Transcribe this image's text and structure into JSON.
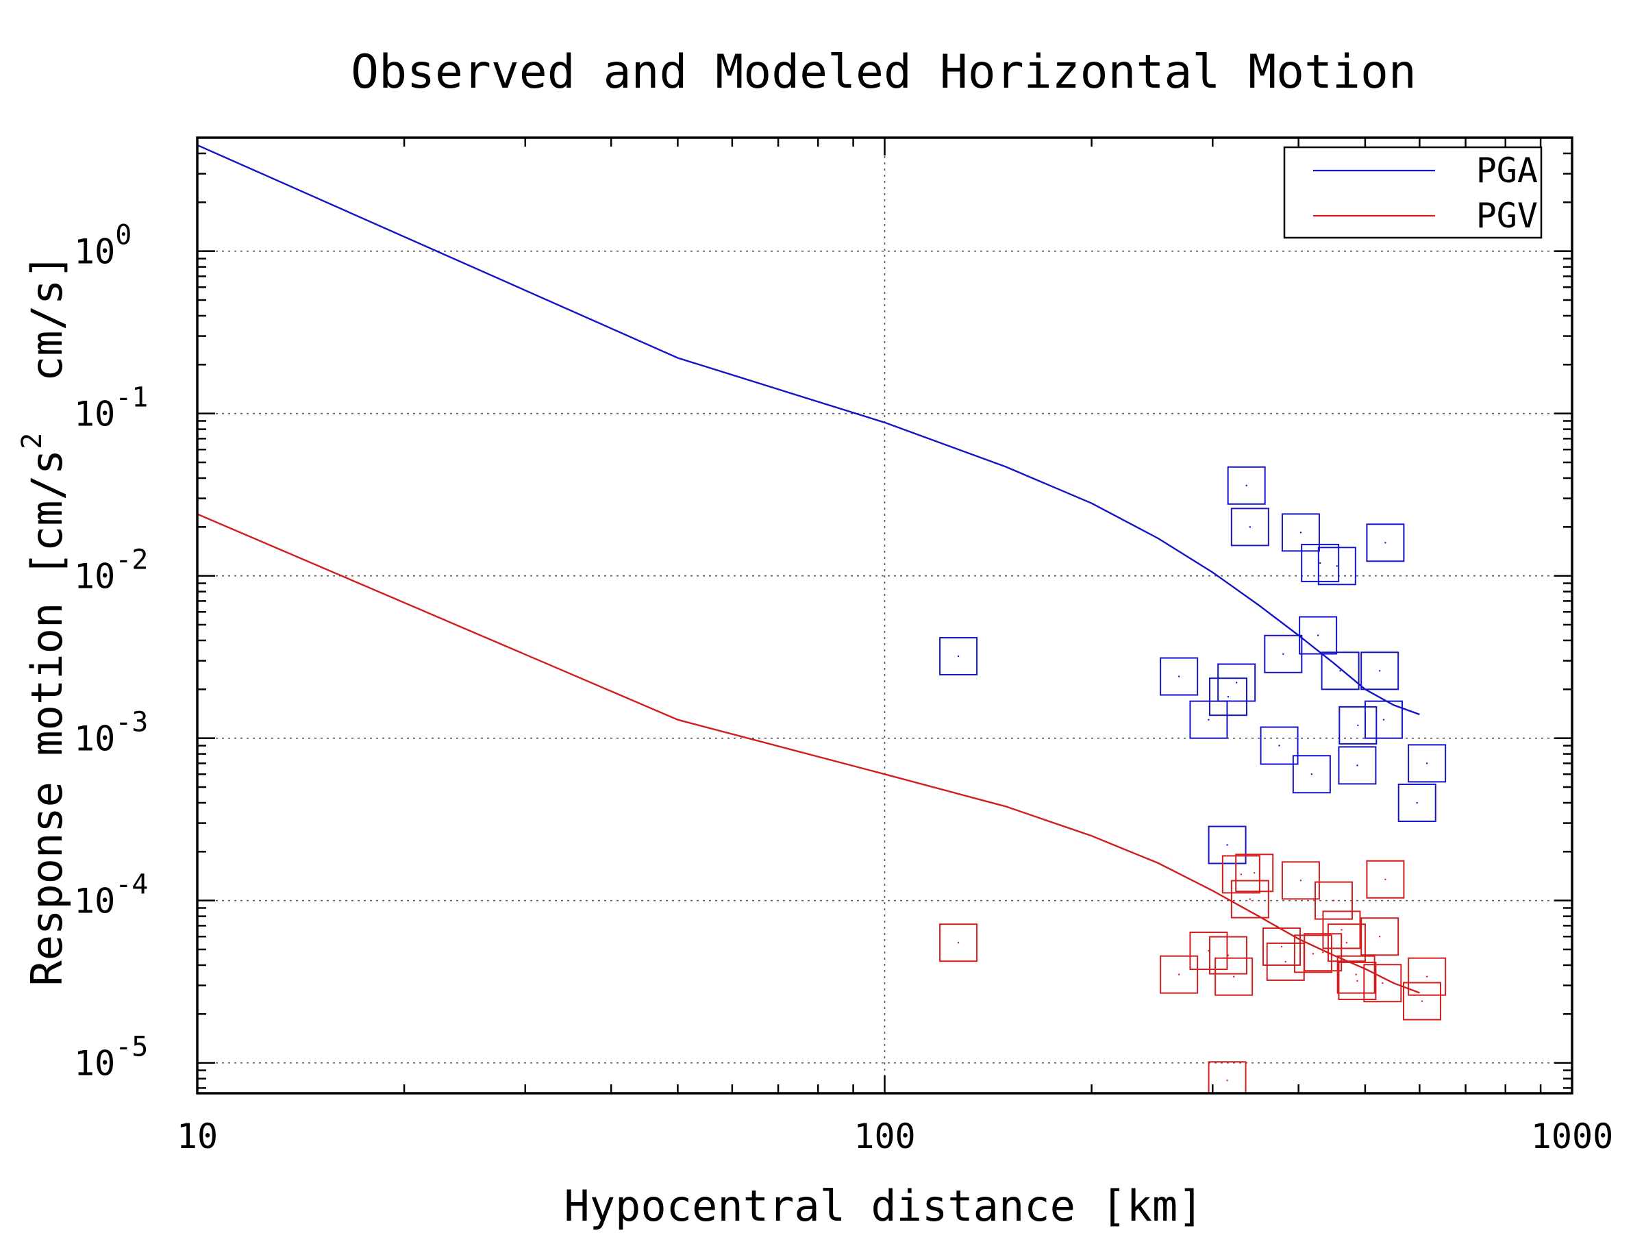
{
  "chart_data": {
    "type": "scatter",
    "title": "Observed and Modeled Horizontal Motion",
    "xlabel": "Hypocentral distance [km]",
    "ylabel_parts": {
      "main": "Response motion [cm/s",
      "sup": "2",
      "tail": "  cm/s]"
    },
    "x_scale": "log",
    "y_scale": "log",
    "xlim": [
      10,
      1000
    ],
    "ylim": [
      6.5e-06,
      5
    ],
    "x_ticks": [
      {
        "value": 10,
        "label": "10"
      },
      {
        "value": 100,
        "label": "100"
      },
      {
        "value": 1000,
        "label": "1000"
      }
    ],
    "y_ticks": [
      {
        "value": 1,
        "base": "10",
        "exp": "0"
      },
      {
        "value": 0.1,
        "base": "10",
        "exp": "-1"
      },
      {
        "value": 0.01,
        "base": "10",
        "exp": "-2"
      },
      {
        "value": 0.001,
        "base": "10",
        "exp": "-3"
      },
      {
        "value": 0.0001,
        "base": "10",
        "exp": "-4"
      },
      {
        "value": 1e-05,
        "base": "10",
        "exp": "-5"
      }
    ],
    "grid": true,
    "legend_position": "top-right",
    "series": [
      {
        "name": "PGA",
        "color": "#1414c8",
        "curve": {
          "x": [
            10,
            50,
            100,
            150,
            200,
            250,
            300,
            350,
            400,
            450,
            500,
            550,
            600
          ],
          "y": [
            4.5,
            0.22,
            0.088,
            0.047,
            0.028,
            0.017,
            0.0105,
            0.0066,
            0.0043,
            0.0029,
            0.002,
            0.0016,
            0.0014
          ]
        },
        "points": {
          "x": [
            336,
            340,
            403,
            430,
            455,
            535,
            128,
            268,
            296,
            316,
            325,
            380,
            427,
            460,
            525,
            375,
            418,
            488,
            487,
            532,
            615,
            595,
            315
          ],
          "y": [
            0.036,
            0.02,
            0.0185,
            0.012,
            0.0115,
            0.016,
            0.0032,
            0.0024,
            0.0013,
            0.0018,
            0.0022,
            0.0033,
            0.0043,
            0.0026,
            0.0026,
            0.0009,
            0.0006,
            0.0012,
            0.00068,
            0.0013,
            0.0007,
            0.0004,
            0.00022
          ]
        }
      },
      {
        "name": "PGV",
        "color": "#d21e1e",
        "curve": {
          "x": [
            10,
            50,
            100,
            150,
            200,
            250,
            300,
            350,
            400,
            450,
            500,
            550,
            600
          ],
          "y": [
            0.024,
            0.0013,
            0.0006,
            0.00038,
            0.00025,
            0.00017,
            0.000115,
            8e-05,
            5.8e-05,
            4.6e-05,
            3.8e-05,
            3.1e-05,
            2.7e-05
          ]
        },
        "points": {
          "x": [
            128,
            268,
            296,
            316,
            322,
            330,
            340,
            345,
            378,
            383,
            403,
            420,
            434,
            450,
            462,
            470,
            485,
            487,
            530,
            525,
            535,
            605,
            615,
            315
          ],
          "y": [
            5.5e-05,
            3.5e-05,
            4.9e-05,
            4.6e-05,
            3.4e-05,
            0.000145,
            0.000102,
            0.000148,
            5.2e-05,
            4.2e-05,
            0.000133,
            4.7e-05,
            4.8e-05,
            0.0001,
            6.6e-05,
            5.5e-05,
            3.5e-05,
            3.2e-05,
            3.1e-05,
            6e-05,
            0.000135,
            2.4e-05,
            3.4e-05,
            7.8e-06
          ]
        }
      }
    ]
  }
}
